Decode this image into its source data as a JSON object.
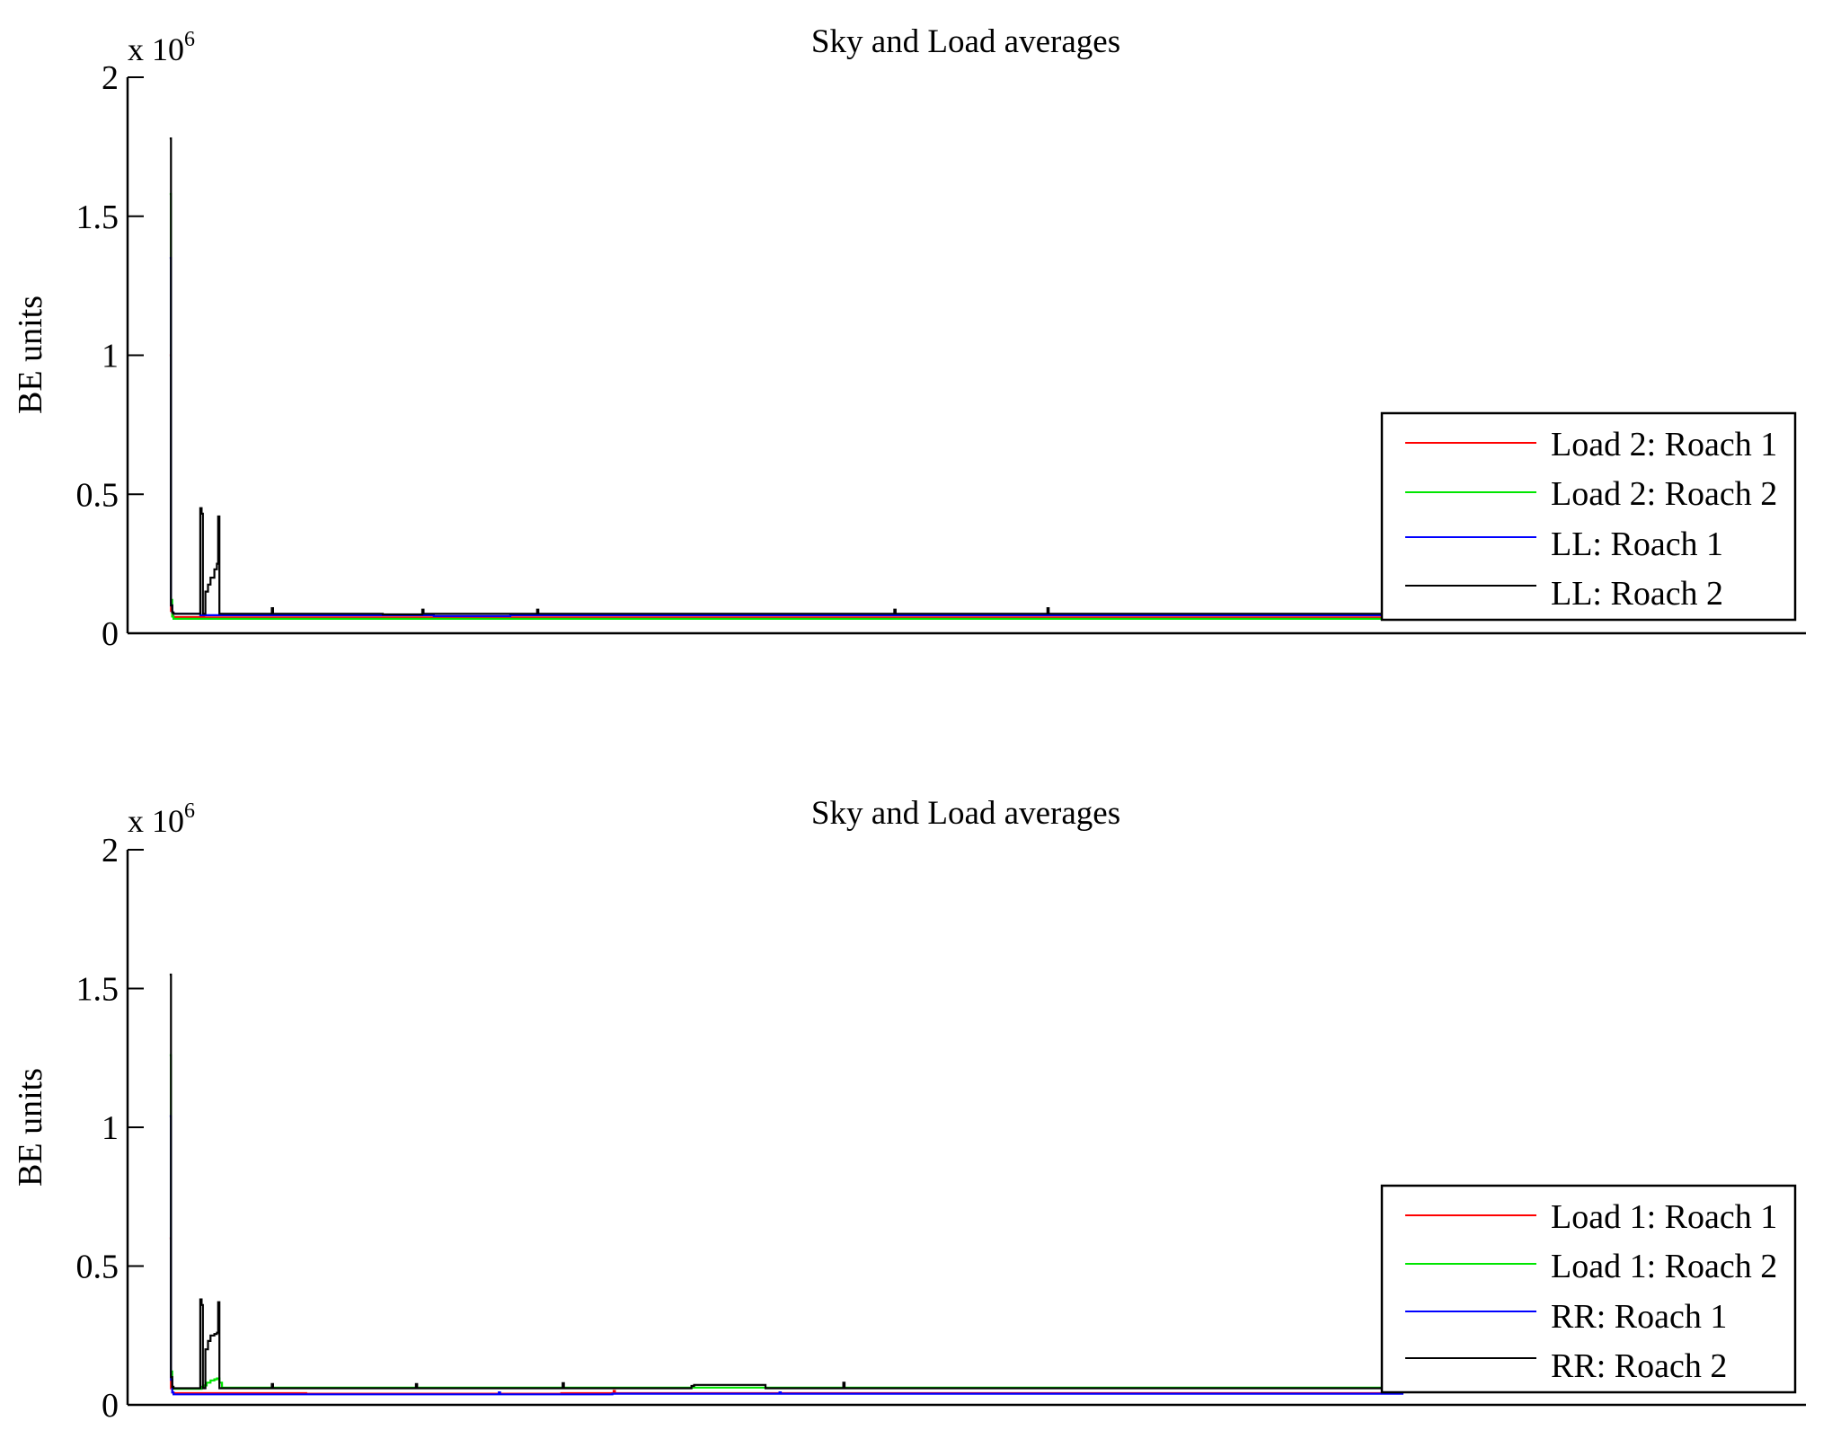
{
  "figure": {
    "background": "#ffffff"
  },
  "chart_data": [
    {
      "type": "line",
      "title": "Sky and Load averages",
      "xlabel": "",
      "ylabel": "BE units",
      "y_multiplier": "x 10",
      "y_multiplier_exponent": "6",
      "ylim": [
        0,
        2000000
      ],
      "yticks": [
        0,
        500000,
        1000000,
        1500000,
        2000000
      ],
      "ytick_labels": [
        "0",
        "0.5",
        "1",
        "1.5",
        "2"
      ],
      "xlim": [
        0,
        1000
      ],
      "x_ticks_shown": false,
      "grid": false,
      "legend_position": "bottom-right",
      "series": [
        {
          "name": "Load 2: Roach 1",
          "color": "#ff0000",
          "x": [
            33,
            34,
            35,
            36,
            60,
            80,
            120,
            200,
            300,
            400,
            500,
            600,
            700,
            800,
            900,
            999
          ],
          "y": [
            1000000,
            80000,
            62000,
            58000,
            57000,
            57000,
            57000,
            57000,
            57000,
            57000,
            57000,
            57000,
            57000,
            57000,
            57000,
            57000
          ]
        },
        {
          "name": "Load 2: Roach 2",
          "color": "#00e600",
          "x": [
            33,
            34,
            35,
            36,
            60,
            80,
            120,
            200,
            300,
            400,
            500,
            600,
            700,
            800,
            900,
            999
          ],
          "y": [
            1580000,
            120000,
            60000,
            52000,
            52000,
            52000,
            52000,
            52000,
            52000,
            52000,
            52000,
            52000,
            52000,
            52000,
            52000,
            52000
          ]
        },
        {
          "name": "LL: Roach 1",
          "color": "#0000ff",
          "x": [
            33,
            34,
            35,
            36,
            56,
            57,
            80,
            150,
            200,
            240,
            300,
            400,
            500,
            600,
            700,
            800,
            900,
            999
          ],
          "y": [
            1350000,
            100000,
            75000,
            70000,
            70000,
            65000,
            65000,
            65000,
            65000,
            62000,
            65000,
            65000,
            65000,
            65000,
            65000,
            65000,
            65000,
            65000
          ]
        },
        {
          "name": "LL: Roach 2",
          "color": "#000000",
          "x": [
            33,
            34,
            35,
            36,
            56,
            57,
            58,
            59,
            61,
            63,
            65,
            68,
            70,
            71,
            72,
            100,
            112,
            113,
            114,
            180,
            200,
            210,
            230,
            231,
            232,
            320,
            321,
            322,
            420,
            600,
            601,
            602,
            720,
            721,
            722,
            999
          ],
          "y": [
            1780000,
            100000,
            75000,
            70000,
            70000,
            450000,
            430000,
            70000,
            150000,
            175000,
            200000,
            230000,
            250000,
            420000,
            70000,
            70000,
            70000,
            90000,
            70000,
            70000,
            68000,
            68000,
            68000,
            85000,
            70000,
            70000,
            85000,
            70000,
            70000,
            70000,
            85000,
            70000,
            70000,
            90000,
            70000,
            70000
          ]
        }
      ]
    },
    {
      "type": "line",
      "title": "Sky and Load averages",
      "xlabel": "",
      "ylabel": "BE units",
      "y_multiplier": "x 10",
      "y_multiplier_exponent": "6",
      "ylim": [
        0,
        2000000
      ],
      "yticks": [
        0,
        500000,
        1000000,
        1500000,
        2000000
      ],
      "ytick_labels": [
        "0",
        "0.5",
        "1",
        "1.5",
        "2"
      ],
      "xlim": [
        0,
        1000
      ],
      "x_ticks_shown": false,
      "grid": false,
      "legend_position": "bottom-right",
      "series": [
        {
          "name": "Load 1: Roach 1",
          "color": "#ff0000",
          "x": [
            33,
            34,
            35,
            36,
            80,
            130,
            140,
            200,
            300,
            340,
            380,
            381,
            382,
            450,
            500,
            600,
            700,
            800,
            900,
            1000
          ],
          "y": [
            600000,
            60000,
            45000,
            42000,
            42000,
            42000,
            40000,
            40000,
            40000,
            42000,
            42000,
            50000,
            42000,
            42000,
            42000,
            42000,
            42000,
            42000,
            42000,
            42000
          ]
        },
        {
          "name": "Load 1: Roach 2",
          "color": "#00e600",
          "x": [
            33,
            34,
            35,
            36,
            56,
            58,
            60,
            62,
            65,
            68,
            70,
            72,
            74,
            100,
            200,
            300,
            400,
            500,
            600,
            700,
            800,
            900,
            1000
          ],
          "y": [
            1260000,
            120000,
            60000,
            58000,
            58000,
            65000,
            70000,
            80000,
            88000,
            92000,
            95000,
            80000,
            62000,
            62000,
            62000,
            62000,
            62000,
            62000,
            62000,
            62000,
            62000,
            62000,
            62000
          ]
        },
        {
          "name": "RR: Roach 1",
          "color": "#0000ff",
          "x": [
            33,
            34,
            35,
            36,
            60,
            80,
            120,
            200,
            290,
            291,
            292,
            380,
            400,
            500,
            510,
            511,
            512,
            600,
            700,
            800,
            900,
            1000
          ],
          "y": [
            1040000,
            90000,
            45000,
            38000,
            38000,
            38000,
            38000,
            38000,
            38000,
            45000,
            38000,
            40000,
            40000,
            40000,
            40000,
            45000,
            40000,
            40000,
            40000,
            40000,
            40000,
            40000
          ]
        },
        {
          "name": "RR: Roach 2",
          "color": "#000000",
          "x": [
            33,
            34,
            35,
            36,
            56,
            57,
            58,
            59,
            61,
            63,
            65,
            68,
            70,
            71,
            72,
            110,
            112,
            113,
            114,
            200,
            225,
            226,
            227,
            340,
            341,
            342,
            400,
            440,
            442,
            444,
            500,
            560,
            561,
            562,
            700,
            750,
            900,
            999
          ],
          "y": [
            1550000,
            100000,
            65000,
            60000,
            60000,
            380000,
            360000,
            60000,
            200000,
            230000,
            250000,
            255000,
            260000,
            370000,
            60000,
            60000,
            60000,
            75000,
            60000,
            60000,
            60000,
            75000,
            60000,
            60000,
            78000,
            60000,
            60000,
            60000,
            68000,
            72000,
            60000,
            60000,
            80000,
            60000,
            60000,
            60000,
            60000,
            60000
          ]
        }
      ]
    }
  ]
}
